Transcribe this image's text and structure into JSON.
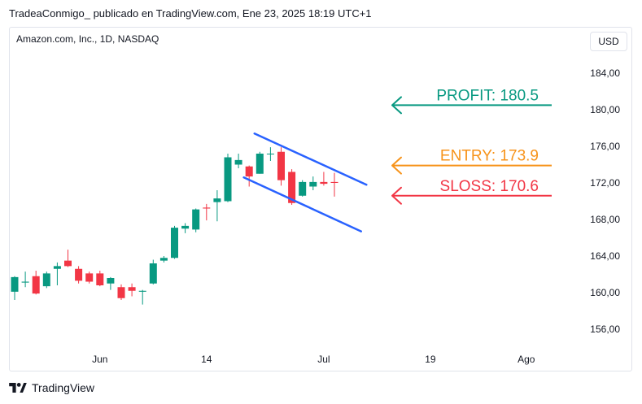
{
  "header": {
    "publish_line": "TradeaConmigo_ publicado en TradingView.com, Ene 23, 2025 18:19 UTC+1"
  },
  "chart_header": {
    "symbol_line": "Amazon.com, Inc., 1D, NASDAQ",
    "currency": "USD"
  },
  "footer": {
    "brand": "TradingView",
    "logo_icon": "tradingview-logo-icon"
  },
  "colors": {
    "up": "#089981",
    "down": "#f23645",
    "channel": "#2962ff",
    "profit": "#089981",
    "entry": "#f7931a",
    "sloss": "#f23645"
  },
  "chart_data": {
    "type": "candlestick",
    "title": "Amazon.com, Inc., 1D, NASDAQ",
    "ylim": [
      155.2,
      187.6
    ],
    "y_ticks": [
      "184,00",
      "180,00",
      "176,00",
      "172,00",
      "168,00",
      "164,00",
      "160,00",
      "156,00"
    ],
    "y_tick_values": [
      184,
      180,
      176,
      172,
      168,
      164,
      160,
      156
    ],
    "x_tick_labels": [
      {
        "label": "Jun",
        "index": 8
      },
      {
        "label": "14",
        "index": 18
      },
      {
        "label": "Jul",
        "index": 29
      },
      {
        "label": "19",
        "index": 39
      },
      {
        "label": "Ago",
        "index": 48
      }
    ],
    "candles": [
      {
        "o": 160.1,
        "h": 161.8,
        "l": 159.2,
        "c": 161.7
      },
      {
        "o": 161.1,
        "h": 162.3,
        "l": 160.6,
        "c": 161.2
      },
      {
        "o": 161.8,
        "h": 162.4,
        "l": 159.8,
        "c": 159.9
      },
      {
        "o": 160.7,
        "h": 162.3,
        "l": 160.5,
        "c": 162.1
      },
      {
        "o": 162.6,
        "h": 163.3,
        "l": 160.8,
        "c": 162.9
      },
      {
        "o": 163.5,
        "h": 164.7,
        "l": 162.8,
        "c": 162.9
      },
      {
        "o": 162.6,
        "h": 162.9,
        "l": 161.0,
        "c": 161.3
      },
      {
        "o": 162.1,
        "h": 162.3,
        "l": 161.0,
        "c": 161.2
      },
      {
        "o": 162.1,
        "h": 162.4,
        "l": 160.7,
        "c": 160.8
      },
      {
        "o": 161.0,
        "h": 161.7,
        "l": 160.3,
        "c": 161.6
      },
      {
        "o": 160.6,
        "h": 160.9,
        "l": 159.2,
        "c": 159.4
      },
      {
        "o": 160.6,
        "h": 161.0,
        "l": 159.6,
        "c": 160.2
      },
      {
        "o": 160.1,
        "h": 160.3,
        "l": 158.7,
        "c": 160.2
      },
      {
        "o": 161.0,
        "h": 163.6,
        "l": 160.9,
        "c": 163.2
      },
      {
        "o": 163.5,
        "h": 164.0,
        "l": 163.3,
        "c": 163.8
      },
      {
        "o": 163.8,
        "h": 167.3,
        "l": 163.7,
        "c": 167.1
      },
      {
        "o": 167.0,
        "h": 167.6,
        "l": 166.5,
        "c": 167.3
      },
      {
        "o": 166.9,
        "h": 169.2,
        "l": 166.6,
        "c": 169.1
      },
      {
        "o": 169.3,
        "h": 169.7,
        "l": 167.9,
        "c": 169.2
      },
      {
        "o": 169.9,
        "h": 171.2,
        "l": 167.8,
        "c": 170.3
      },
      {
        "o": 170.0,
        "h": 175.2,
        "l": 169.9,
        "c": 174.8
      },
      {
        "o": 174.0,
        "h": 175.2,
        "l": 173.6,
        "c": 174.5
      },
      {
        "o": 173.8,
        "h": 173.9,
        "l": 171.6,
        "c": 172.7
      },
      {
        "o": 173.0,
        "h": 175.4,
        "l": 173.0,
        "c": 175.2
      },
      {
        "o": 175.2,
        "h": 175.9,
        "l": 174.4,
        "c": 175.2
      },
      {
        "o": 175.4,
        "h": 175.9,
        "l": 171.7,
        "c": 172.3
      },
      {
        "o": 173.2,
        "h": 173.5,
        "l": 169.6,
        "c": 169.8
      },
      {
        "o": 170.6,
        "h": 172.3,
        "l": 170.5,
        "c": 172.1
      },
      {
        "o": 171.6,
        "h": 172.7,
        "l": 171.2,
        "c": 172.1
      },
      {
        "o": 172.1,
        "h": 173.2,
        "l": 171.7,
        "c": 171.9
      },
      {
        "o": 172.1,
        "h": 173.1,
        "l": 170.5,
        "c": 172.0
      }
    ],
    "channel_lines": [
      {
        "from": {
          "index": 22.5,
          "value": 177.4
        },
        "to": {
          "index": 33.0,
          "value": 171.8
        }
      },
      {
        "from": {
          "index": 21.5,
          "value": 172.6
        },
        "to": {
          "index": 32.5,
          "value": 166.7
        }
      }
    ],
    "levels": [
      {
        "name": "profit",
        "label": "PROFIT: 180.5",
        "value": 180.5
      },
      {
        "name": "entry",
        "label": "ENTRY: 173.9",
        "value": 173.9
      },
      {
        "name": "sloss",
        "label": "SLOSS: 170.6",
        "value": 170.6
      }
    ]
  }
}
